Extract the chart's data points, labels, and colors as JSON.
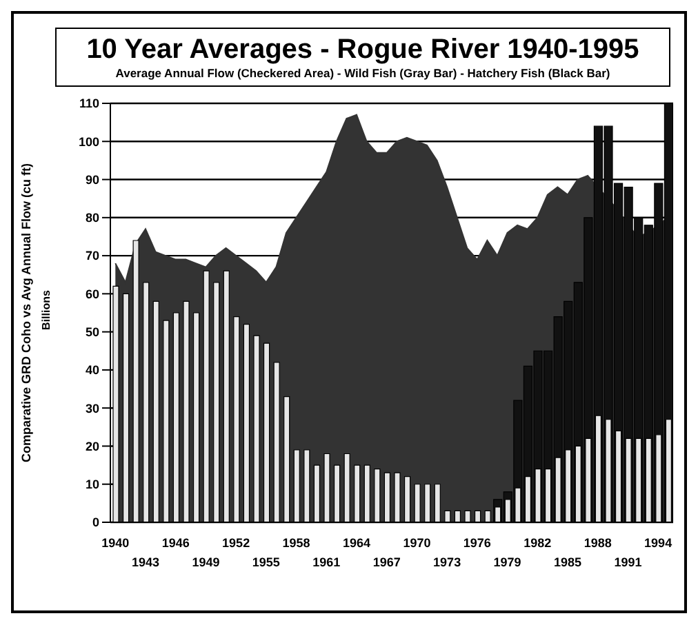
{
  "chart_data": {
    "type": "bar",
    "title": "10 Year Averages - Rogue River 1940-1995",
    "subtitle": "Average Annual Flow (Checkered Area) - Wild Fish (Gray Bar) - Hatchery Fish (Black Bar)",
    "ylabel": "Comparative GRD Coho vs Avg Annual Flow (cu ft)",
    "annotations": [
      "Billions"
    ],
    "categories": [
      "1940",
      null,
      null,
      "1943",
      null,
      null,
      "1946",
      null,
      null,
      "1949",
      null,
      null,
      "1952",
      null,
      null,
      "1955",
      null,
      null,
      "1958",
      null,
      null,
      "1961",
      null,
      null,
      "1964",
      null,
      null,
      "1967",
      null,
      null,
      "1970",
      null,
      null,
      "1973",
      null,
      null,
      "1976",
      null,
      null,
      "1979",
      null,
      null,
      "1982",
      null,
      null,
      "1985",
      null,
      null,
      "1988",
      null,
      null,
      "1991",
      null,
      null,
      "1994",
      null
    ],
    "grid": "y",
    "ylim": [
      0,
      110
    ],
    "yticks": [
      0,
      10,
      20,
      30,
      40,
      50,
      60,
      70,
      80,
      90,
      100,
      110
    ],
    "series": [
      {
        "type": "area",
        "color": "#333333",
        "values": [
          68,
          63,
          73,
          77,
          71,
          70,
          69,
          69,
          68,
          67,
          70,
          72,
          70,
          68,
          66,
          63,
          67,
          76,
          80,
          84,
          88,
          92,
          100,
          106,
          107,
          100,
          97,
          97,
          100,
          101,
          100,
          99,
          95,
          88,
          80,
          72,
          69,
          74,
          70,
          76,
          78,
          77,
          80,
          86,
          88,
          86,
          90,
          91,
          88,
          85,
          82,
          78,
          75,
          76,
          78,
          80
        ]
      },
      {
        "color": "#111111",
        "values": [
          null,
          null,
          null,
          null,
          null,
          null,
          null,
          null,
          null,
          null,
          null,
          null,
          null,
          null,
          null,
          null,
          null,
          null,
          null,
          null,
          null,
          null,
          null,
          null,
          null,
          null,
          null,
          null,
          null,
          null,
          null,
          null,
          null,
          null,
          null,
          null,
          null,
          null,
          6,
          8,
          32,
          41,
          45,
          45,
          54,
          58,
          63,
          80,
          104,
          104,
          89,
          88,
          80,
          78,
          89,
          110
        ]
      },
      {
        "color": "#e6e6e6",
        "values": [
          62,
          60,
          74,
          63,
          58,
          53,
          55,
          58,
          55,
          66,
          63,
          66,
          54,
          52,
          49,
          47,
          42,
          33,
          19,
          19,
          15,
          18,
          15,
          18,
          15,
          15,
          14,
          13,
          13,
          12,
          10,
          10,
          10,
          3,
          3,
          3,
          3,
          3,
          4,
          6,
          9,
          12,
          14,
          14,
          17,
          19,
          20,
          22,
          28,
          27,
          24,
          22,
          22,
          22,
          23,
          27
        ]
      }
    ]
  }
}
